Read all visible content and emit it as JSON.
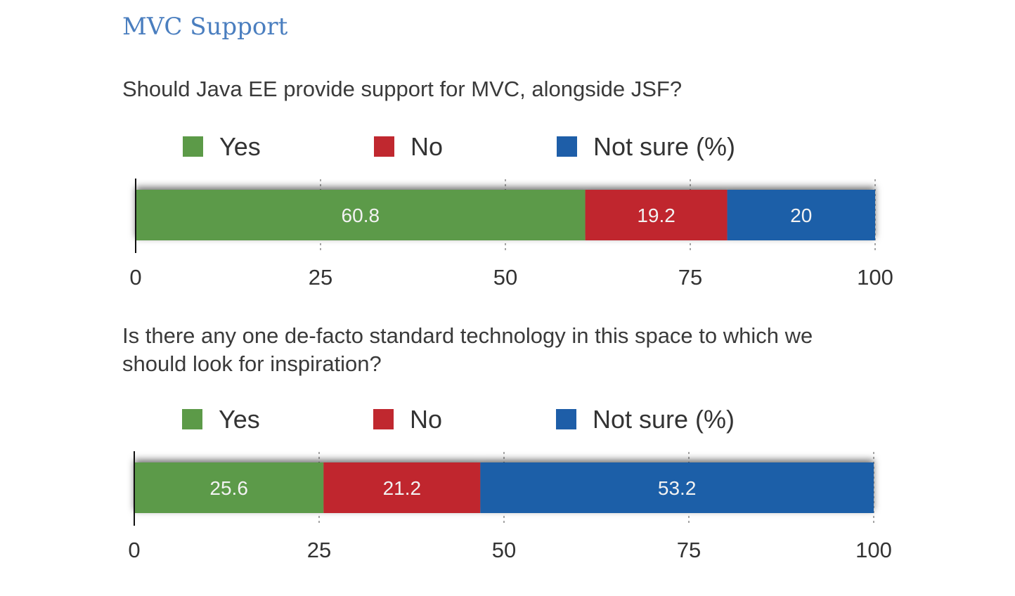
{
  "title": "MVC Support",
  "colors": {
    "yes": "#5c9a48",
    "no": "#c0282f",
    "not_sure": "#1e5ea8"
  },
  "chart_data": [
    {
      "type": "bar",
      "orientation": "horizontal-stacked",
      "title": "Should Java EE provide support for MVC, alongside JSF?",
      "legend": [
        "Yes",
        "No",
        "Not sure (%)"
      ],
      "legend_placement": "top",
      "series": [
        {
          "name": "Yes",
          "values": [
            60.8
          ]
        },
        {
          "name": "No",
          "values": [
            19.2
          ]
        },
        {
          "name": "Not sure (%)",
          "values": [
            20
          ]
        }
      ],
      "xlim": [
        0,
        100
      ],
      "xticks": [
        "0",
        "25",
        "50",
        "75",
        "100"
      ],
      "grid": true
    },
    {
      "type": "bar",
      "orientation": "horizontal-stacked",
      "title": "Is there any one de-facto standard technology in this space to which we should look for inspiration?",
      "legend": [
        "Yes",
        "No",
        "Not sure (%)"
      ],
      "legend_placement": "top",
      "series": [
        {
          "name": "Yes",
          "values": [
            25.6
          ]
        },
        {
          "name": "No",
          "values": [
            21.2
          ]
        },
        {
          "name": "Not sure (%)",
          "values": [
            53.2
          ]
        }
      ],
      "xlim": [
        0,
        100
      ],
      "xticks": [
        "0",
        "25",
        "50",
        "75",
        "100"
      ],
      "grid": true
    }
  ]
}
